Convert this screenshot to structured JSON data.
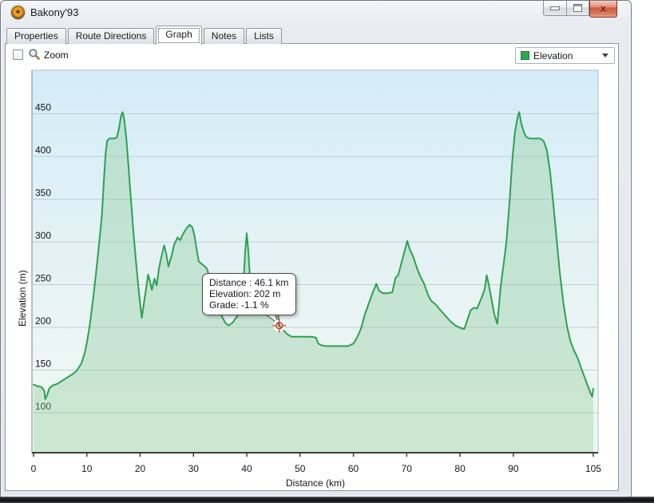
{
  "window": {
    "title": "Bakony'93"
  },
  "tabs": [
    {
      "label": "Properties",
      "active": false
    },
    {
      "label": "Route Directions",
      "active": false
    },
    {
      "label": "Graph",
      "active": true
    },
    {
      "label": "Notes",
      "active": false
    },
    {
      "label": "Lists",
      "active": false
    }
  ],
  "toolbar": {
    "zoom_label": "Zoom",
    "zoom_checked": false,
    "series_selector": {
      "value": "Elevation",
      "swatch_color": "#2EA84F"
    }
  },
  "chart_data": {
    "type": "area",
    "title": "",
    "xlabel": "Distance  (km)",
    "ylabel": "Elevation (m)",
    "xlim": [
      0,
      105
    ],
    "ylim": [
      50,
      500
    ],
    "x_ticks": [
      0,
      10,
      20,
      30,
      40,
      50,
      60,
      70,
      80,
      90,
      105
    ],
    "y_ticks": [
      100,
      150,
      200,
      250,
      300,
      350,
      400,
      450
    ],
    "grid": "horizontal",
    "colors": {
      "line": "#2CA24E",
      "fill": "rgba(141,202,156,0.38)",
      "grid": "#c3ced5",
      "plot_border": "#b3bec6",
      "bg_top": "#d3ecf8",
      "bg_mid": "#e9f4f4",
      "bg_bottom": "#f0f8f2",
      "axis": "#3d3d3d",
      "axis_left": "#7a848c",
      "tick_text": "#15151f",
      "marker": "#d9301f"
    },
    "series": [
      {
        "name": "Elevation",
        "points": [
          [
            0,
            133
          ],
          [
            0.8,
            131
          ],
          [
            1.5,
            130
          ],
          [
            2,
            126
          ],
          [
            2.2,
            116
          ],
          [
            2.5,
            120
          ],
          [
            3,
            129
          ],
          [
            3.6,
            132
          ],
          [
            4.5,
            134
          ],
          [
            5.5,
            138
          ],
          [
            6.5,
            142
          ],
          [
            7.5,
            146
          ],
          [
            8.2,
            150
          ],
          [
            9,
            158
          ],
          [
            9.6,
            170
          ],
          [
            10,
            182
          ],
          [
            10.6,
            205
          ],
          [
            11.2,
            235
          ],
          [
            11.8,
            268
          ],
          [
            12.3,
            298
          ],
          [
            12.8,
            330
          ],
          [
            13.2,
            372
          ],
          [
            13.5,
            402
          ],
          [
            13.8,
            418
          ],
          [
            14.2,
            421
          ],
          [
            15,
            421
          ],
          [
            15.6,
            422
          ],
          [
            16,
            432
          ],
          [
            16.4,
            447
          ],
          [
            16.7,
            452
          ],
          [
            17,
            444
          ],
          [
            17.4,
            421
          ],
          [
            17.8,
            390
          ],
          [
            18.2,
            355
          ],
          [
            18.7,
            315
          ],
          [
            19.2,
            278
          ],
          [
            19.7,
            245
          ],
          [
            20.3,
            211
          ],
          [
            20.7,
            228
          ],
          [
            21.1,
            245
          ],
          [
            21.5,
            262
          ],
          [
            21.9,
            252
          ],
          [
            22.2,
            244
          ],
          [
            22.7,
            257
          ],
          [
            23.1,
            249
          ],
          [
            23.5,
            268
          ],
          [
            24,
            283
          ],
          [
            24.5,
            296
          ],
          [
            24.9,
            286
          ],
          [
            25.3,
            271
          ],
          [
            25.9,
            284
          ],
          [
            26.4,
            297
          ],
          [
            27,
            305
          ],
          [
            27.5,
            302
          ],
          [
            28.1,
            310
          ],
          [
            28.7,
            316
          ],
          [
            29.3,
            320
          ],
          [
            29.8,
            317
          ],
          [
            30.2,
            307
          ],
          [
            30.6,
            291
          ],
          [
            31,
            277
          ],
          [
            31.8,
            273
          ],
          [
            32.5,
            269
          ],
          [
            33,
            259
          ],
          [
            33.6,
            246
          ],
          [
            34.2,
            233
          ],
          [
            34.8,
            222
          ],
          [
            35.4,
            212
          ],
          [
            36,
            205
          ],
          [
            36.6,
            202
          ],
          [
            37.4,
            206
          ],
          [
            38.2,
            213
          ],
          [
            38.8,
            223
          ],
          [
            39.3,
            242
          ],
          [
            39.7,
            288
          ],
          [
            40,
            310
          ],
          [
            40.3,
            289
          ],
          [
            40.7,
            248
          ],
          [
            41.1,
            226
          ],
          [
            41.7,
            222
          ],
          [
            42.3,
            228
          ],
          [
            43,
            224
          ],
          [
            43.6,
            222
          ],
          [
            44,
            231
          ],
          [
            44.4,
            240
          ],
          [
            44.8,
            228
          ],
          [
            45.2,
            223
          ],
          [
            45.6,
            232
          ],
          [
            46.1,
            202
          ],
          [
            46.8,
            197
          ],
          [
            47.6,
            192
          ],
          [
            48.4,
            189
          ],
          [
            50,
            189
          ],
          [
            52,
            189
          ],
          [
            53,
            188
          ],
          [
            53.4,
            181
          ],
          [
            54,
            179
          ],
          [
            55,
            178
          ],
          [
            57,
            178
          ],
          [
            59,
            178
          ],
          [
            60,
            181
          ],
          [
            60.6,
            187
          ],
          [
            61.4,
            198
          ],
          [
            62.2,
            216
          ],
          [
            63,
            230
          ],
          [
            63.7,
            242
          ],
          [
            64.3,
            251
          ],
          [
            64.8,
            243
          ],
          [
            65.5,
            240
          ],
          [
            66.5,
            240
          ],
          [
            67.3,
            241
          ],
          [
            67.9,
            258
          ],
          [
            68.4,
            261
          ],
          [
            69,
            275
          ],
          [
            69.6,
            289
          ],
          [
            70.1,
            301
          ],
          [
            70.6,
            291
          ],
          [
            71.2,
            283
          ],
          [
            72,
            268
          ],
          [
            72.6,
            259
          ],
          [
            73.2,
            252
          ],
          [
            74,
            238
          ],
          [
            74.6,
            231
          ],
          [
            75.4,
            227
          ],
          [
            76.2,
            221
          ],
          [
            77.2,
            214
          ],
          [
            78.2,
            207
          ],
          [
            79.2,
            202
          ],
          [
            80.2,
            199
          ],
          [
            80.8,
            198
          ],
          [
            81.4,
            209
          ],
          [
            82,
            220
          ],
          [
            82.6,
            223
          ],
          [
            83.2,
            222
          ],
          [
            84,
            234
          ],
          [
            84.6,
            244
          ],
          [
            85,
            261
          ],
          [
            85.4,
            250
          ],
          [
            85.9,
            233
          ],
          [
            86.4,
            216
          ],
          [
            87,
            204
          ],
          [
            87.6,
            246
          ],
          [
            88.2,
            275
          ],
          [
            88.7,
            300
          ],
          [
            89.3,
            348
          ],
          [
            89.8,
            395
          ],
          [
            90.3,
            428
          ],
          [
            90.8,
            446
          ],
          [
            91.1,
            452
          ],
          [
            91.5,
            438
          ],
          [
            92,
            428
          ],
          [
            92.4,
            423
          ],
          [
            93,
            421
          ],
          [
            94,
            421
          ],
          [
            95,
            421
          ],
          [
            95.7,
            418
          ],
          [
            96.3,
            407
          ],
          [
            96.9,
            382
          ],
          [
            97.5,
            345
          ],
          [
            98.1,
            305
          ],
          [
            98.7,
            265
          ],
          [
            99.4,
            228
          ],
          [
            100.1,
            200
          ],
          [
            100.7,
            184
          ],
          [
            101.3,
            174
          ],
          [
            102,
            165
          ],
          [
            102.7,
            153
          ],
          [
            103.4,
            141
          ],
          [
            104,
            131
          ],
          [
            104.5,
            123
          ],
          [
            104.8,
            119
          ],
          [
            105,
            128
          ]
        ]
      }
    ],
    "cursor": {
      "distance_km": 46.1,
      "elevation_m": 202,
      "grade_pct": -1.1
    },
    "tooltip": {
      "lines": [
        "Distance  : 46.1 km",
        "Elevation: 202 m",
        "Grade: -1.1 %"
      ]
    }
  }
}
